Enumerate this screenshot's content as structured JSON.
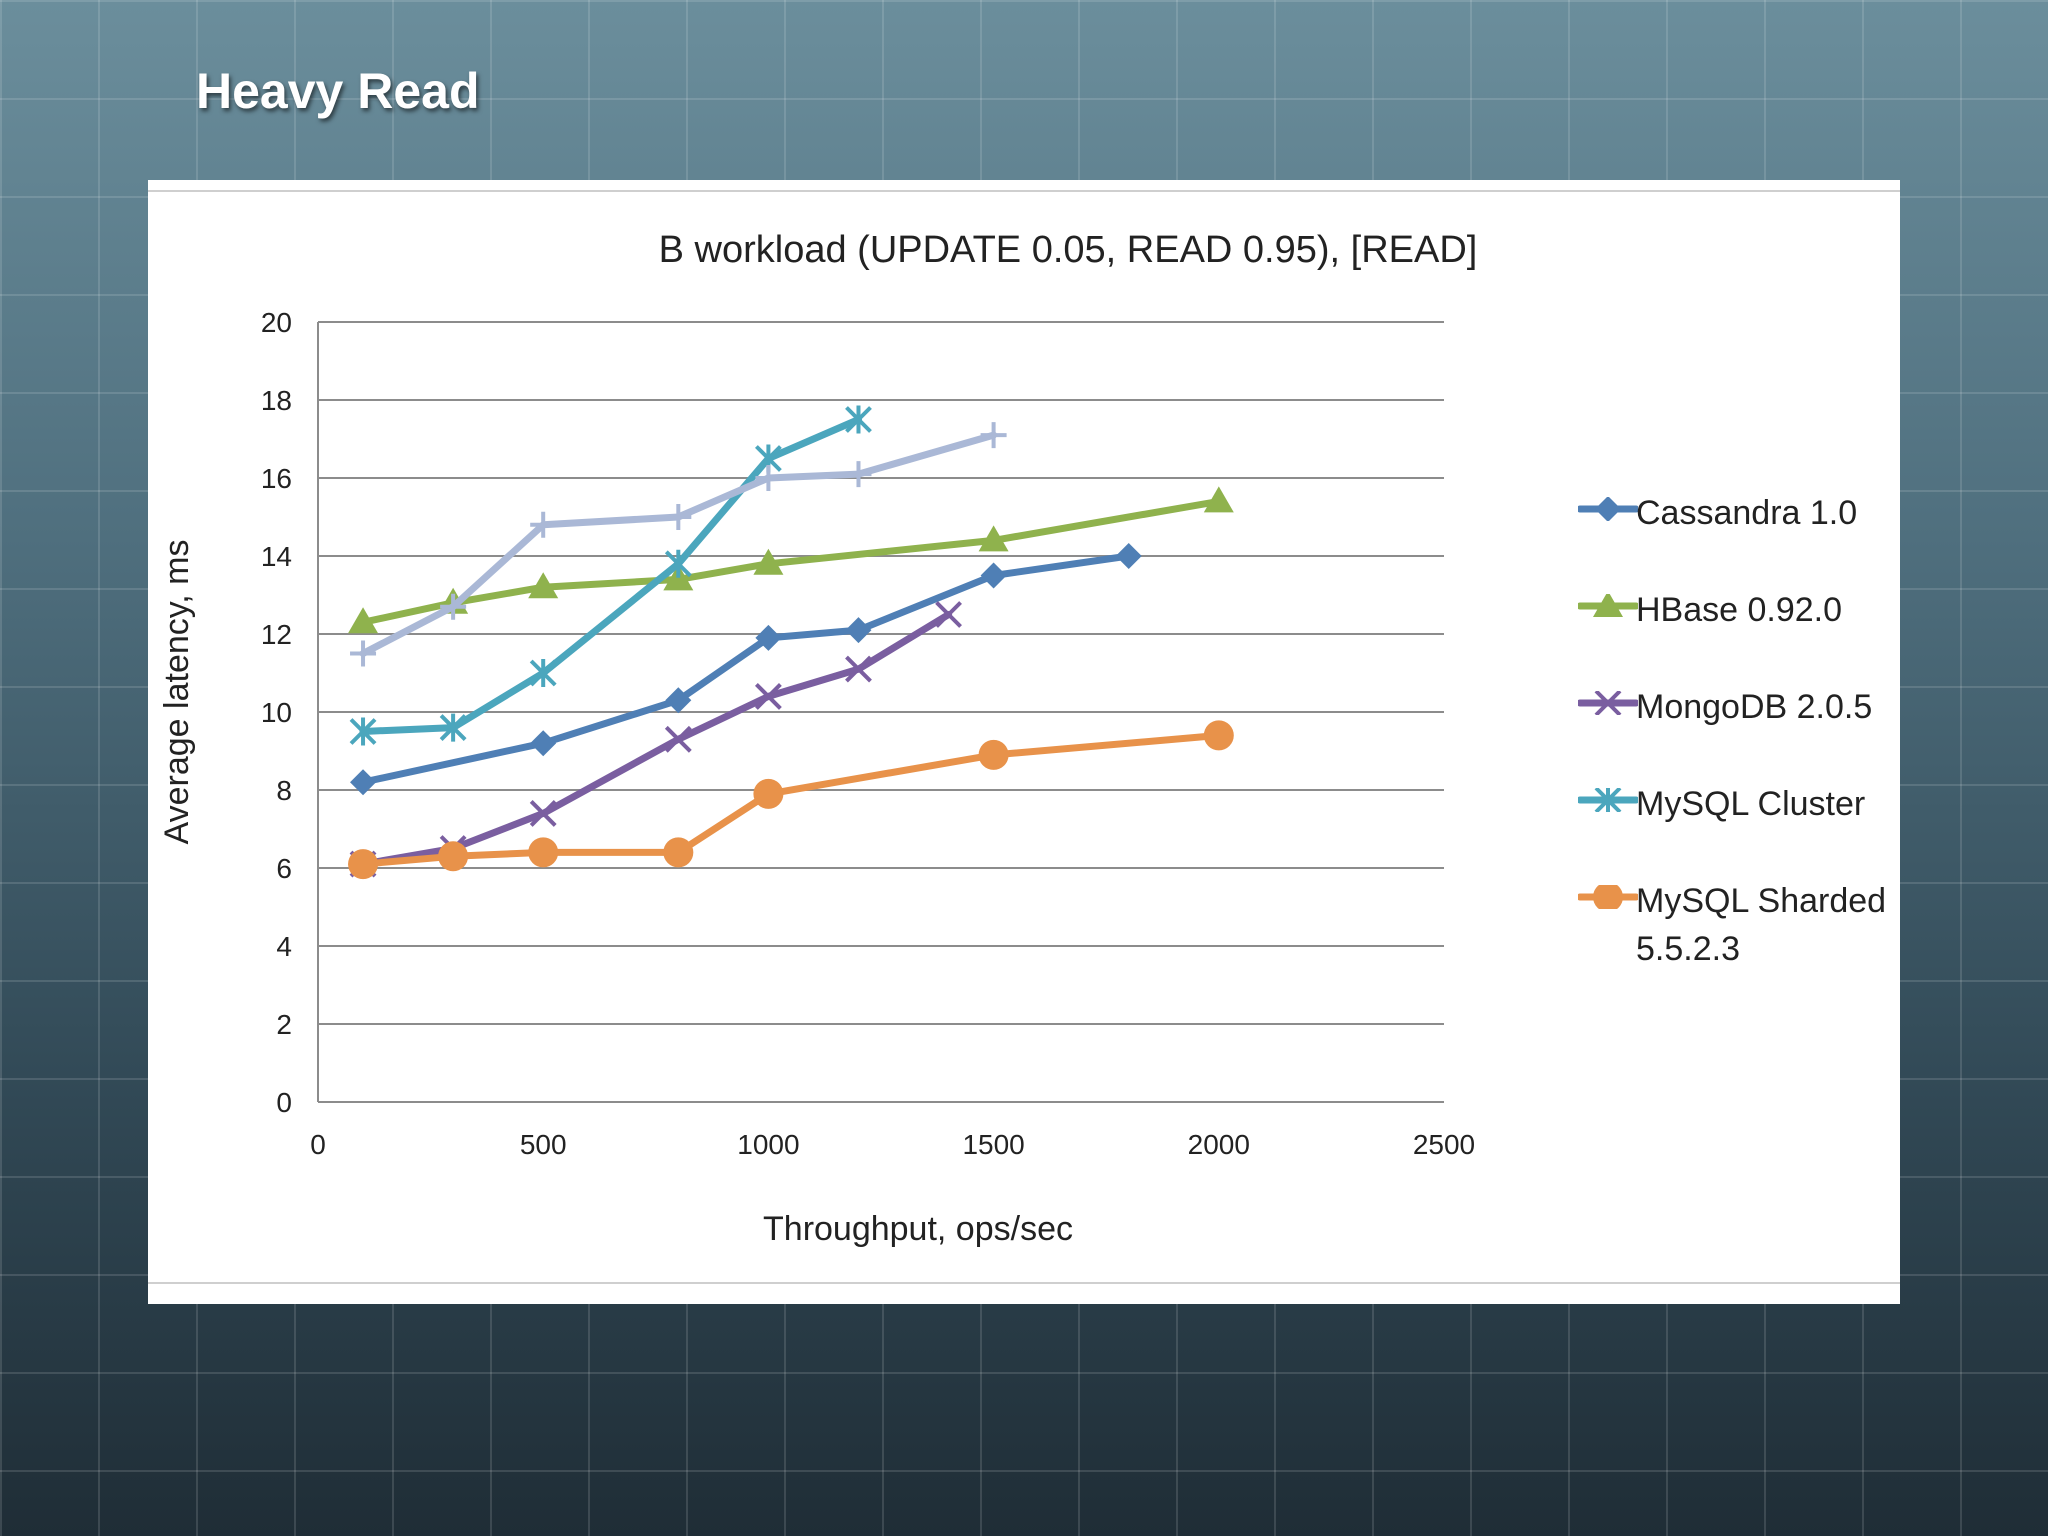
{
  "slide": {
    "title": "Heavy Read"
  },
  "colors": {
    "cassandra": "#4f7fb5",
    "hbase": "#8fb24d",
    "mongodb": "#7a5ea0",
    "mysql_cluster": "#4ba6bd",
    "mysql_sharded": "#e8924a",
    "unlabeled_series": "#aab8d6"
  },
  "chart_data": {
    "type": "line",
    "title": "B workload (UPDATE 0.05, READ 0.95), [READ]",
    "xlabel": "Throughput, ops/sec",
    "ylabel": "Average latency, ms",
    "xlim": [
      0,
      2500
    ],
    "ylim": [
      0,
      20
    ],
    "xticks": [
      "0",
      "500",
      "1000",
      "1500",
      "2000",
      "2500"
    ],
    "yticks": [
      "0",
      "2",
      "4",
      "6",
      "8",
      "10",
      "12",
      "14",
      "16",
      "18",
      "20"
    ],
    "grid": "horizontal",
    "legend_position": "right",
    "series": [
      {
        "name": "Cassandra 1.0",
        "legend": "Cassandra 1.0",
        "color": "#4f7fb5",
        "marker": "diamond",
        "x": [
          100,
          500,
          800,
          1000,
          1200,
          1500,
          1800
        ],
        "y": [
          8.2,
          9.2,
          10.3,
          11.9,
          12.1,
          13.5,
          14.0
        ]
      },
      {
        "name": "HBase 0.92.0",
        "legend": "HBase 0.92.0",
        "color": "#8fb24d",
        "marker": "triangle",
        "x": [
          100,
          300,
          500,
          800,
          1000,
          1500,
          2000
        ],
        "y": [
          12.3,
          12.8,
          13.2,
          13.4,
          13.8,
          14.4,
          15.4
        ]
      },
      {
        "name": "MongoDB 2.0.5",
        "legend": "MongoDB 2.0.5",
        "color": "#7a5ea0",
        "marker": "x",
        "x": [
          100,
          300,
          500,
          800,
          1000,
          1200,
          1400
        ],
        "y": [
          6.1,
          6.5,
          7.4,
          9.3,
          10.4,
          11.1,
          12.5
        ]
      },
      {
        "name": "MySQL Cluster",
        "legend": "MySQL Cluster",
        "color": "#4ba6bd",
        "marker": "star",
        "x": [
          100,
          300,
          500,
          800,
          1000,
          1200
        ],
        "y": [
          9.5,
          9.6,
          11.0,
          13.8,
          16.5,
          17.5
        ]
      },
      {
        "name": "MySQL Sharded 5.5.2.3",
        "legend": "MySQL Sharded 5.5.2.3",
        "color": "#e8924a",
        "marker": "circle",
        "x": [
          100,
          300,
          500,
          800,
          1000,
          1500,
          2000
        ],
        "y": [
          6.1,
          6.3,
          6.4,
          6.4,
          7.9,
          8.9,
          9.4
        ]
      },
      {
        "name": "",
        "legend": null,
        "color": "#aab8d6",
        "marker": "plus",
        "x": [
          100,
          300,
          500,
          800,
          1000,
          1200,
          1500
        ],
        "y": [
          11.5,
          12.7,
          14.8,
          15.0,
          16.0,
          16.1,
          17.1
        ]
      }
    ]
  }
}
